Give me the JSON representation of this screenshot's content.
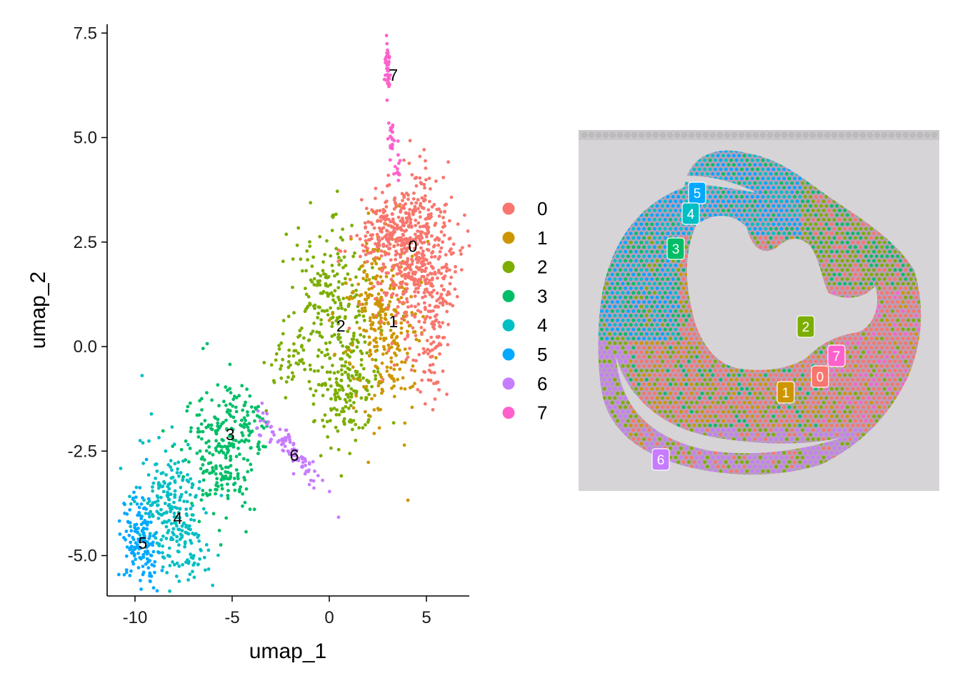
{
  "chart_data": [
    {
      "type": "scatter",
      "xlabel": "umap_1",
      "ylabel": "umap_2",
      "xlim": [
        -11.3,
        7.0
      ],
      "ylim": [
        -5.9,
        7.7
      ],
      "x_ticks": [
        {
          "value": -10,
          "label": "-10"
        },
        {
          "value": -5,
          "label": "-5"
        },
        {
          "value": 0,
          "label": "0"
        },
        {
          "value": 5,
          "label": "5"
        }
      ],
      "y_ticks": [
        {
          "value": 7.5,
          "label": "7.5"
        },
        {
          "value": 5.0,
          "label": "5.0"
        },
        {
          "value": 2.5,
          "label": "2.5"
        },
        {
          "value": 0.0,
          "label": "0.0"
        },
        {
          "value": -2.5,
          "label": "-2.5"
        },
        {
          "value": -5.0,
          "label": "-5.0"
        }
      ],
      "grid": false,
      "legend_position": "right",
      "clusters": [
        {
          "name": "0",
          "color": "#F8766D",
          "center": [
            4.2,
            2.4
          ],
          "label_at": [
            4.3,
            2.4
          ]
        },
        {
          "name": "1",
          "color": "#CD9600",
          "center": [
            3.0,
            0.4
          ],
          "label_at": [
            3.3,
            0.6
          ]
        },
        {
          "name": "2",
          "color": "#7CAE00",
          "center": [
            0.8,
            0.3
          ],
          "label_at": [
            0.6,
            0.5
          ]
        },
        {
          "name": "3",
          "color": "#00BE67",
          "center": [
            -5.5,
            -2.4
          ],
          "label_at": [
            -5.1,
            -2.1
          ]
        },
        {
          "name": "4",
          "color": "#00BFC4",
          "center": [
            -8.0,
            -4.0
          ],
          "label_at": [
            -7.8,
            -4.1
          ]
        },
        {
          "name": "5",
          "color": "#00A9FF",
          "center": [
            -9.6,
            -4.5
          ],
          "label_at": [
            -9.6,
            -4.7
          ]
        },
        {
          "name": "6",
          "color": "#C77CFF",
          "center": [
            -1.9,
            -2.6
          ],
          "label_at": [
            -1.8,
            -2.6
          ]
        },
        {
          "name": "7",
          "color": "#FF61CC",
          "center": [
            3.0,
            6.6
          ],
          "label_at": [
            3.3,
            6.5
          ]
        }
      ]
    },
    {
      "type": "spatial-image",
      "description_clusters": [
        {
          "name": "5",
          "color": "#00A9FF"
        },
        {
          "name": "4",
          "color": "#00BFC4"
        },
        {
          "name": "3",
          "color": "#00BE67"
        },
        {
          "name": "2",
          "color": "#7CAE00"
        },
        {
          "name": "7",
          "color": "#FF61CC"
        },
        {
          "name": "0",
          "color": "#F8766D"
        },
        {
          "name": "1",
          "color": "#CD9600"
        },
        {
          "name": "6",
          "color": "#C77CFF"
        }
      ]
    }
  ],
  "legend": [
    {
      "label": "0",
      "color": "#F8766D"
    },
    {
      "label": "1",
      "color": "#CD9600"
    },
    {
      "label": "2",
      "color": "#7CAE00"
    },
    {
      "label": "3",
      "color": "#00BE67"
    },
    {
      "label": "4",
      "color": "#00BFC4"
    },
    {
      "label": "5",
      "color": "#00A9FF"
    },
    {
      "label": "6",
      "color": "#C77CFF"
    },
    {
      "label": "7",
      "color": "#FF61CC"
    }
  ]
}
